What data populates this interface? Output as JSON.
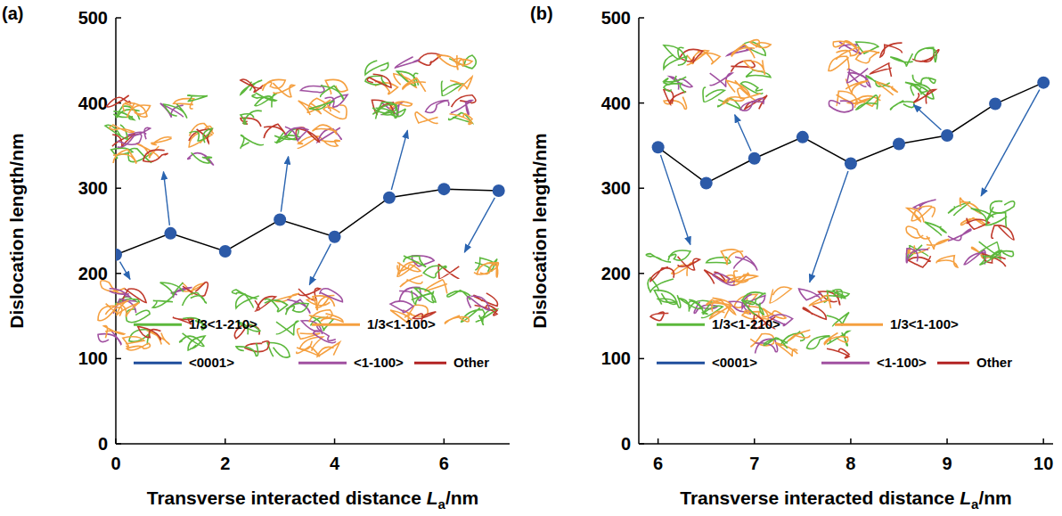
{
  "chart_data": [
    {
      "type": "line",
      "panel_label": "(a)",
      "ylabel": "Dislocation length/nm",
      "xlabel": [
        {
          "text": "Transverse interacted distance "
        },
        {
          "text": "L",
          "style": "italic"
        },
        {
          "text": "a",
          "style": "sub"
        },
        {
          "text": "/nm"
        }
      ],
      "x": [
        0,
        1,
        2,
        3,
        4,
        5,
        6,
        7
      ],
      "values": [
        222,
        247,
        226,
        263,
        243,
        289,
        299,
        297
      ],
      "color": "#2c5aa8",
      "marker": "circle",
      "xlim": [
        0,
        7.2
      ],
      "xticks": [
        0,
        2,
        4,
        6
      ],
      "ylim": [
        0,
        500
      ],
      "yticks": [
        0,
        100,
        200,
        300,
        400,
        500
      ],
      "annotations": [
        {
          "text": "1/3<1-210>",
          "color": "#5cb83c"
        },
        {
          "text": "1/3<1-100>",
          "color": "#f5a040"
        },
        {
          "text": "<0001>",
          "color": "#1f4e9c"
        },
        {
          "text": "<1-100>",
          "color": "#a050a0"
        },
        {
          "text": "Other",
          "color": "#b22222"
        }
      ]
    },
    {
      "type": "line",
      "panel_label": "(b)",
      "ylabel": "Dislocation length/nm",
      "xlabel": [
        {
          "text": "Transverse interacted distance "
        },
        {
          "text": "L",
          "style": "italic"
        },
        {
          "text": "a",
          "style": "sub"
        },
        {
          "text": "/nm"
        }
      ],
      "x": [
        6,
        6.5,
        7,
        7.5,
        8,
        8.5,
        9,
        9.5,
        10
      ],
      "values": [
        348,
        306,
        335,
        360,
        329,
        352,
        362,
        399,
        424
      ],
      "color": "#2c5aa8",
      "marker": "circle",
      "xlim": [
        5.8,
        10.1
      ],
      "xticks": [
        6,
        7,
        8,
        9,
        10
      ],
      "ylim": [
        0,
        500
      ],
      "yticks": [
        0,
        100,
        200,
        300,
        400,
        500
      ],
      "annotations": [
        {
          "text": "1/3<1-210>",
          "color": "#5cb83c"
        },
        {
          "text": "1/3<1-100>",
          "color": "#f5a040"
        },
        {
          "text": "<0001>",
          "color": "#1f4e9c"
        },
        {
          "text": "<1-100>",
          "color": "#a050a0"
        },
        {
          "text": "Other",
          "color": "#b22222"
        }
      ]
    }
  ]
}
